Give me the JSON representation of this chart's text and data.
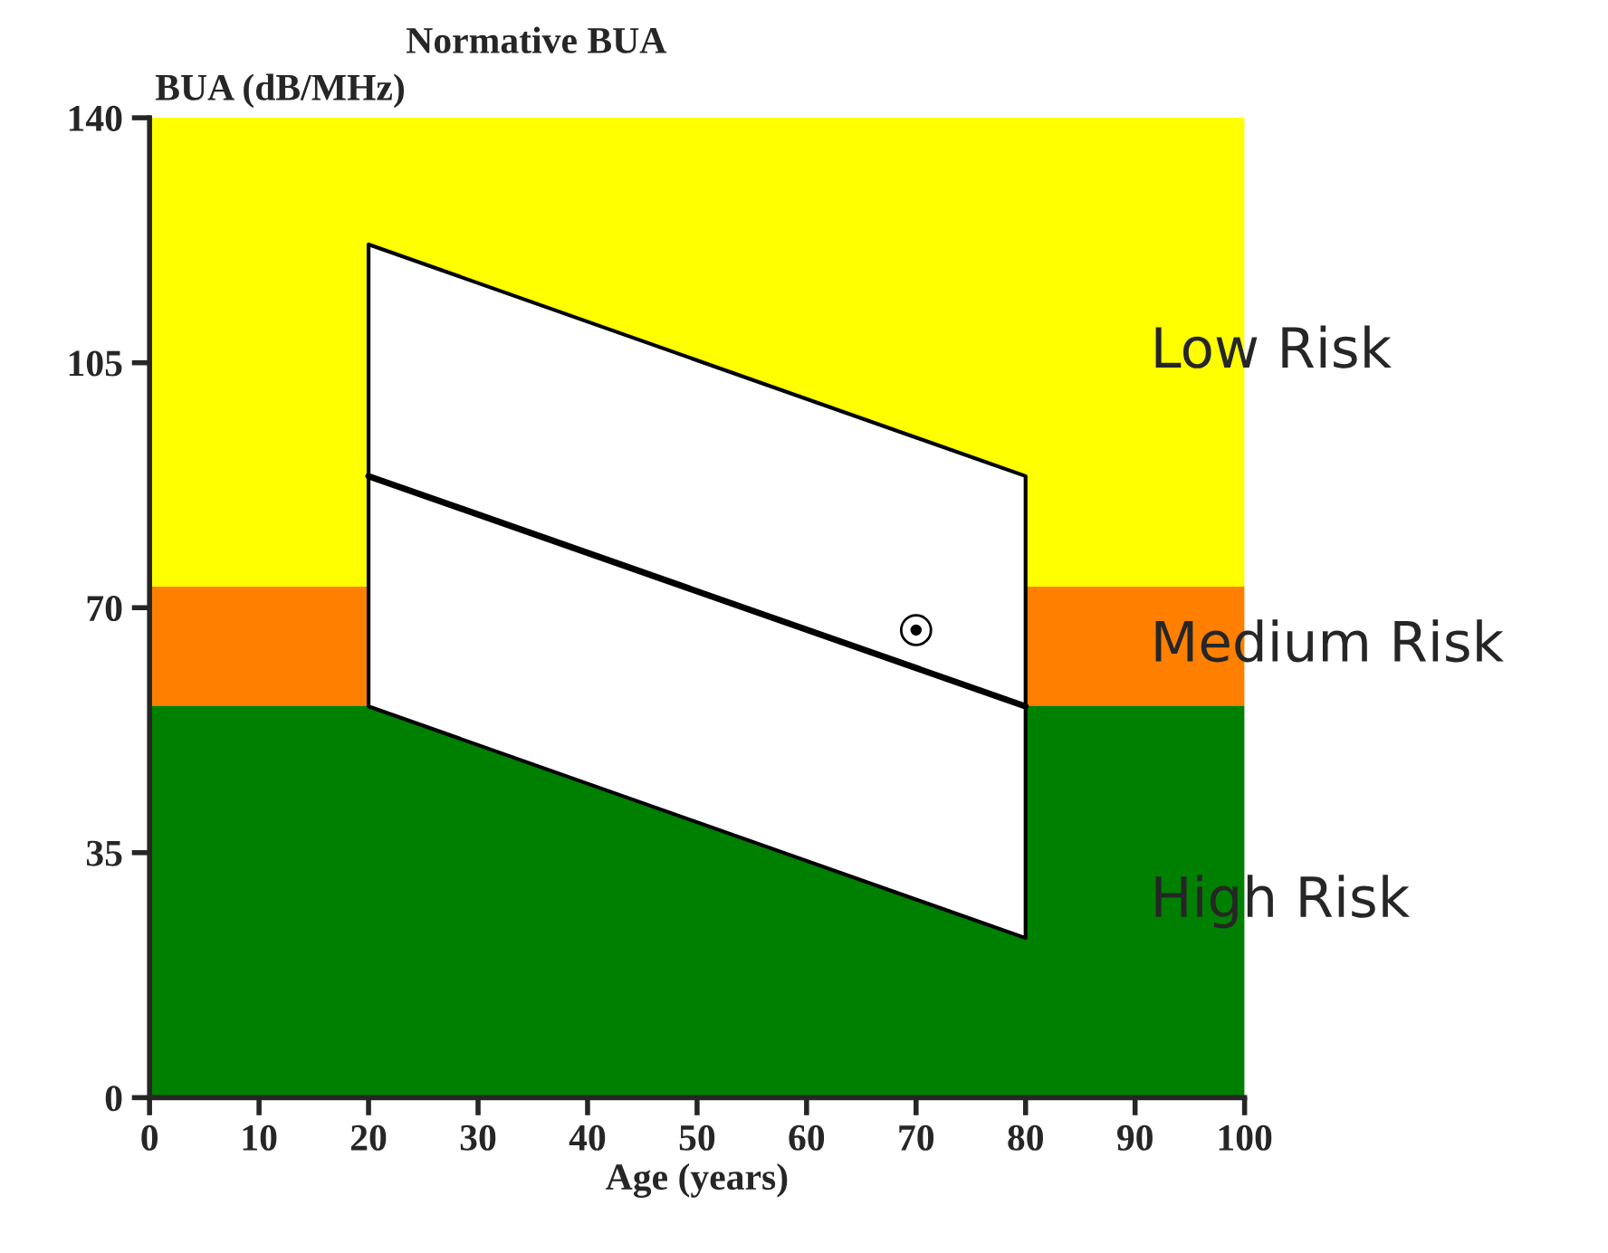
{
  "chart_data": {
    "type": "line",
    "title": "Normative BUA",
    "xlabel": "Age (years)",
    "ylabel": "BUA (dB/MHz)",
    "xlim": [
      0,
      100
    ],
    "ylim": [
      0,
      140
    ],
    "xticks": [
      0,
      10,
      20,
      30,
      40,
      50,
      60,
      70,
      80,
      90,
      100
    ],
    "yticks": [
      0,
      35,
      70,
      105,
      140
    ],
    "grid": false,
    "bands": [
      {
        "axis": "y",
        "from": 73,
        "to": 140,
        "label": "Low Risk",
        "color": "#ffff00"
      },
      {
        "axis": "y",
        "from": 56,
        "to": 73,
        "label": "Medium Risk",
        "color": "#ff8000"
      },
      {
        "axis": "y",
        "from": 0,
        "to": 56,
        "label": "High Risk",
        "color": "#008000"
      }
    ],
    "series": [
      {
        "color": "#000000",
        "x": [
          20,
          80
        ],
        "values": [
          88.8,
          55.9
        ],
        "lower": [
          55.9,
          22.8
        ],
        "upper": [
          121.9,
          88.8
        ]
      },
      {
        "type": "scatter",
        "color": "#000000",
        "x": [
          70
        ],
        "values": [
          66.8
        ],
        "marker": "circle"
      }
    ]
  }
}
